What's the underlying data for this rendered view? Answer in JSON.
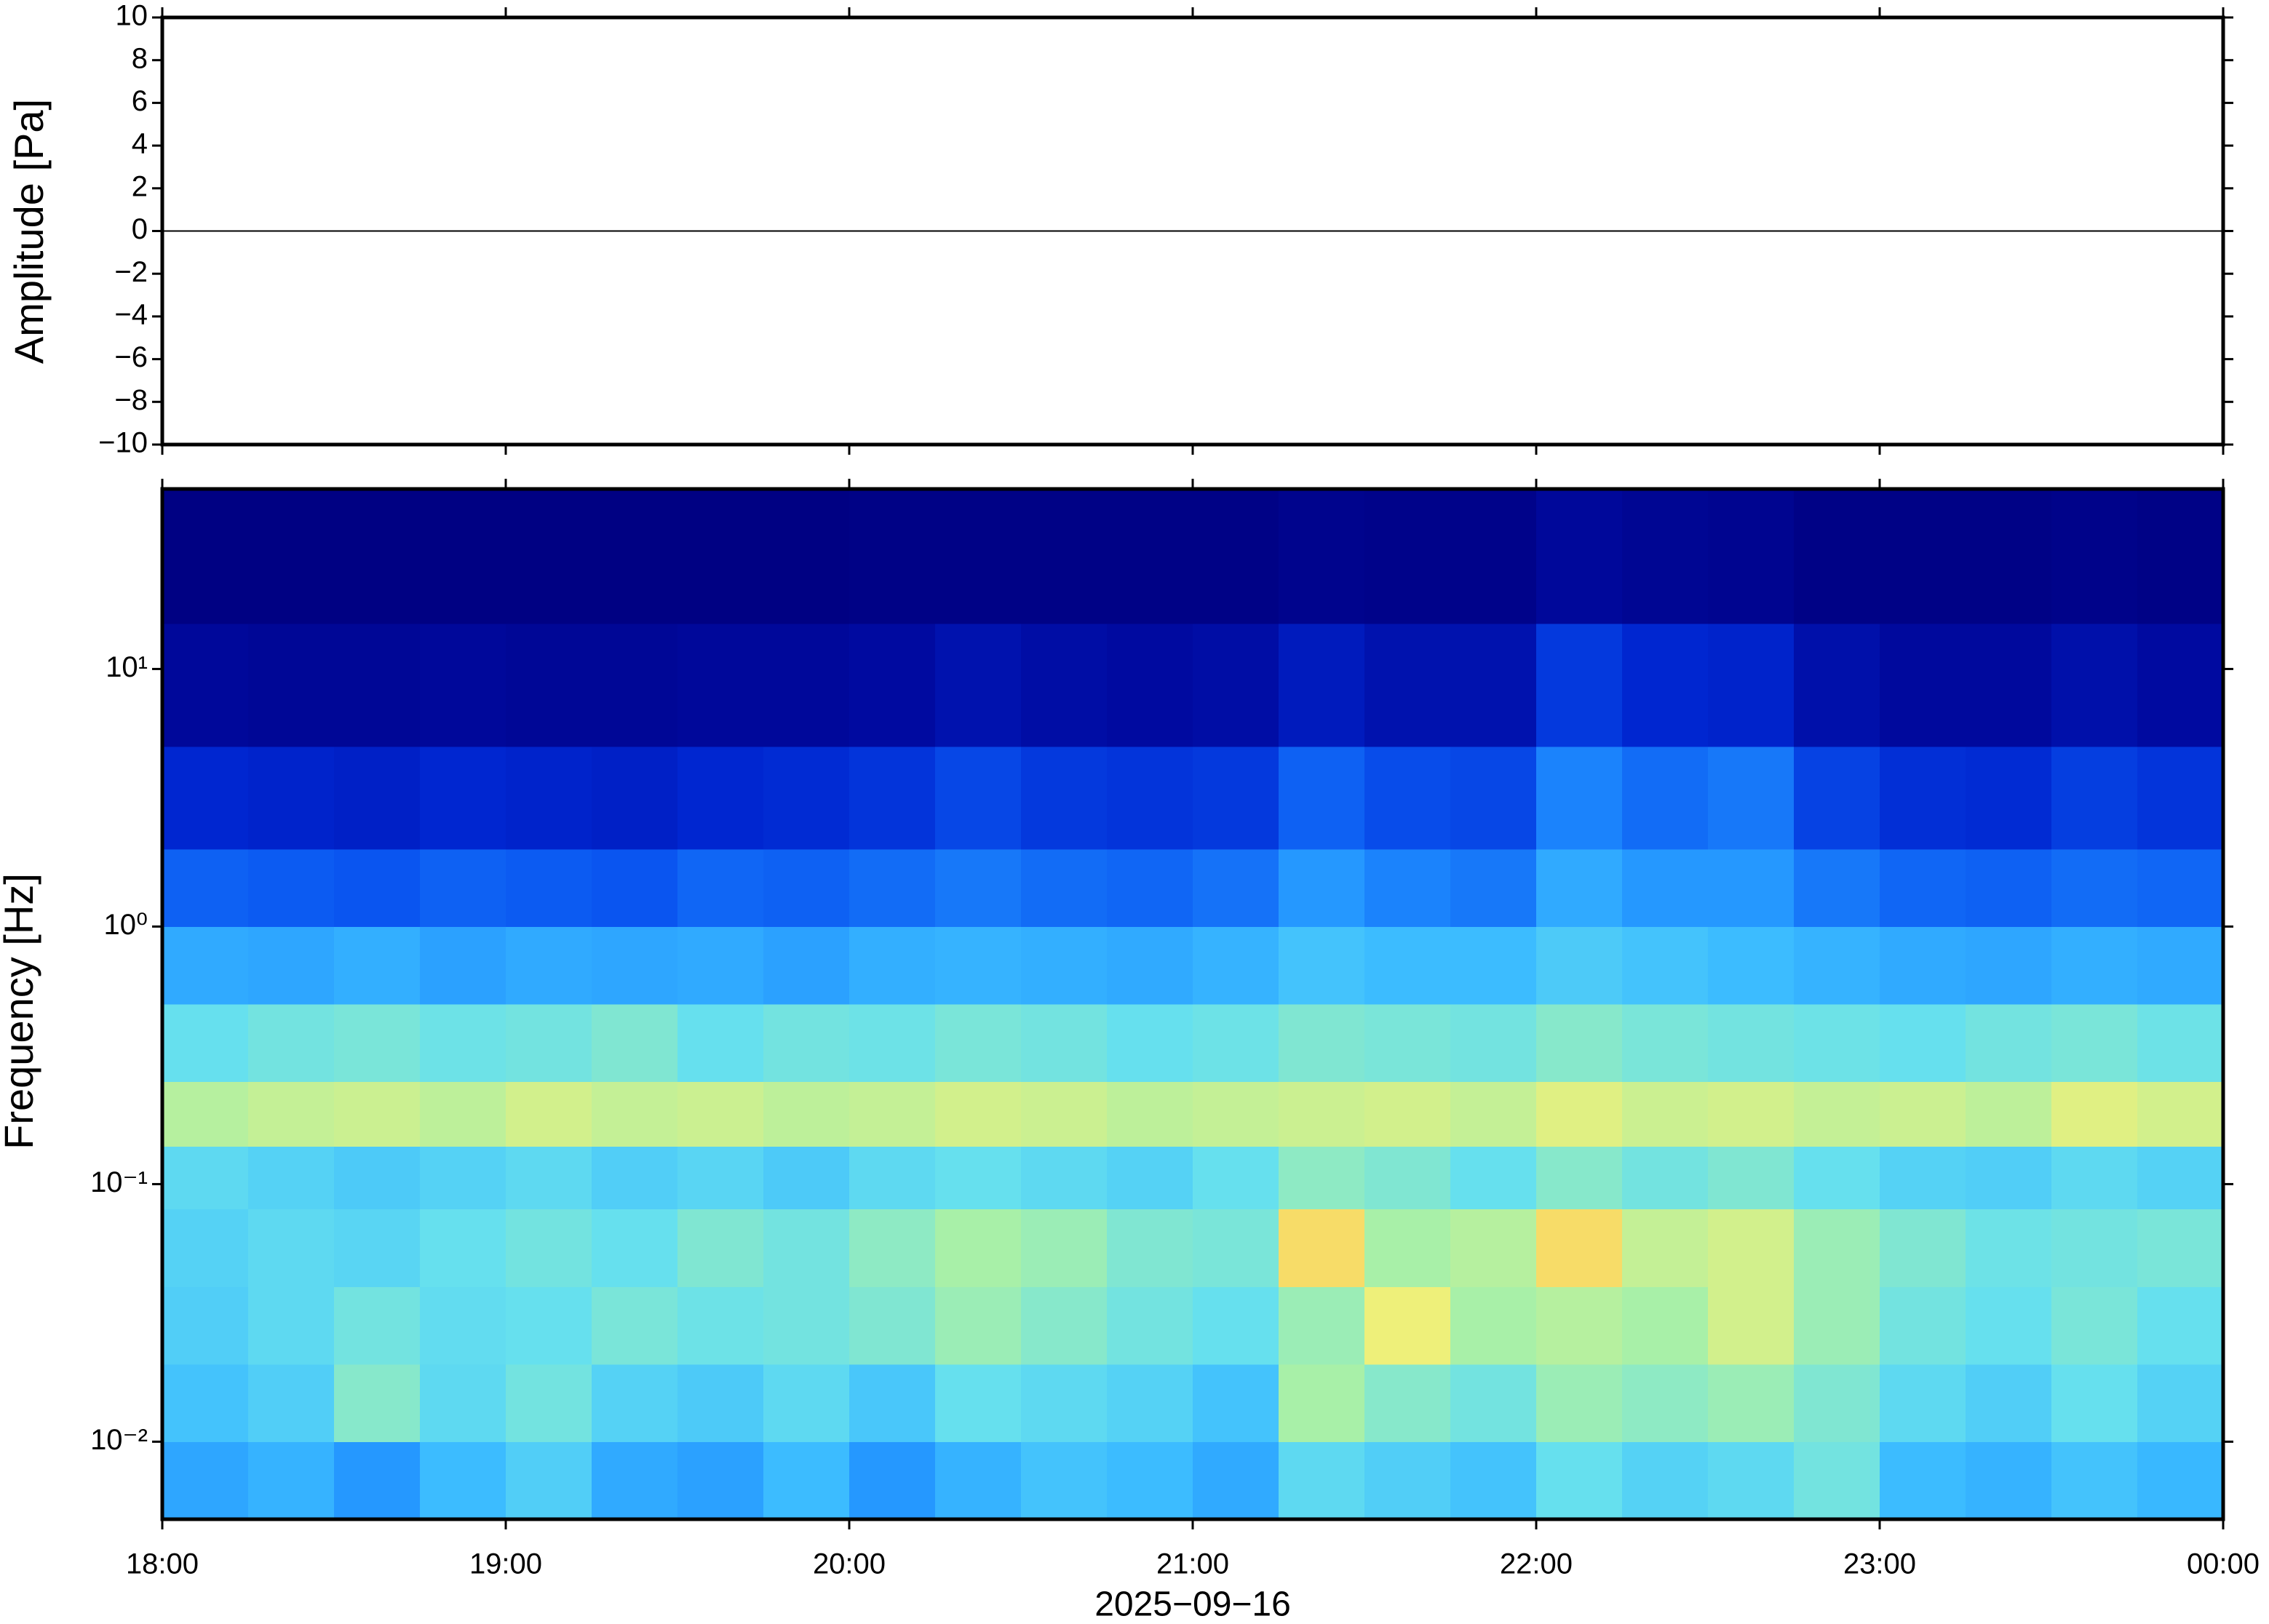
{
  "chart_data": [
    {
      "type": "line",
      "ylabel": "Amplitude [Pa]",
      "x": [
        18,
        24
      ],
      "values": [
        0,
        0
      ],
      "color": "#000000",
      "xlim": [
        18,
        24
      ],
      "ylim": [
        -10,
        10
      ],
      "yticks": [
        {
          "value": -10,
          "label": "−10"
        },
        {
          "value": -8,
          "label": "−8"
        },
        {
          "value": -6,
          "label": "−6"
        },
        {
          "value": -4,
          "label": "−4"
        },
        {
          "value": -2,
          "label": "−2"
        },
        0,
        2,
        4,
        6,
        8,
        10
      ]
    },
    {
      "type": "heatmap",
      "ylabel": "Frequency [Hz]",
      "xlabel": "2025−09−16",
      "xlim": [
        18,
        24
      ],
      "ylim": [
        0.005,
        50
      ],
      "log_y": true,
      "xticks": [
        {
          "value": 18,
          "label": "18:00"
        },
        {
          "value": 19,
          "label": "19:00"
        },
        {
          "value": 20,
          "label": "20:00"
        },
        {
          "value": 21,
          "label": "21:00"
        },
        {
          "value": 22,
          "label": "22:00"
        },
        {
          "value": 23,
          "label": "23:00"
        },
        {
          "value": 24,
          "label": "00:00"
        }
      ],
      "yticks": [
        {
          "value": 0.01,
          "label": "10⁻²"
        },
        {
          "value": 0.1,
          "label": "10⁻¹"
        },
        {
          "value": 1,
          "label": "10⁰"
        },
        {
          "value": 10,
          "label": "10¹"
        }
      ],
      "xbins": [
        18,
        18.25,
        18.5,
        18.75,
        19,
        19.25,
        19.5,
        19.75,
        20,
        20.25,
        20.5,
        20.75,
        21,
        21.25,
        21.5,
        21.75,
        22,
        22.25,
        22.5,
        22.75,
        23,
        23.25,
        23.5,
        23.75,
        24
      ],
      "ybins": [
        0.005,
        0.01,
        0.02,
        0.04,
        0.08,
        0.14,
        0.25,
        0.5,
        1,
        2,
        5,
        15,
        50
      ],
      "zlim": [
        0,
        10
      ],
      "colormap": [
        "#000080",
        "#000aa0",
        "#0026d0",
        "#0a55f0",
        "#1f8fff",
        "#3cbcff",
        "#66e0ee",
        "#a8f0a8",
        "#eef07a",
        "#ffc855",
        "#ff8a3a"
      ],
      "z": [
        [
          4.5,
          4.8,
          4.2,
          5,
          5.5,
          4.6,
          4.4,
          5,
          4.2,
          4.8,
          5.2,
          5,
          4.6,
          5.8,
          5.5,
          5.2,
          6,
          5.6,
          5.8,
          6.2,
          5,
          4.8,
          5.2,
          4.9
        ],
        [
          5.2,
          5.5,
          6.5,
          5.8,
          6.2,
          5.6,
          5.4,
          5.8,
          5.3,
          6,
          5.8,
          5.6,
          5.2,
          7,
          6.5,
          6.2,
          6.8,
          6.6,
          6.8,
          6.4,
          5.8,
          5.5,
          6,
          5.6
        ],
        [
          5.5,
          5.8,
          6.2,
          5.9,
          6,
          6.3,
          6.1,
          6.2,
          6.4,
          6.8,
          6.5,
          6.2,
          6,
          6.8,
          8,
          7,
          7.2,
          7,
          7.6,
          6.8,
          6.2,
          6,
          6.3,
          6
        ],
        [
          5.6,
          5.8,
          5.7,
          6,
          6.2,
          6,
          6.4,
          6.2,
          6.6,
          7,
          6.8,
          6.4,
          6.3,
          8.5,
          7,
          7.2,
          8.5,
          7.4,
          7.6,
          6.8,
          6.4,
          6.1,
          6.2,
          6.3
        ],
        [
          5.8,
          5.6,
          5.4,
          5.6,
          5.8,
          5.5,
          5.7,
          5.4,
          5.8,
          6,
          5.8,
          5.6,
          6,
          6.6,
          6.4,
          6,
          6.5,
          6.2,
          6.4,
          6,
          5.6,
          5.5,
          5.8,
          5.6
        ],
        [
          7.2,
          7.4,
          7.5,
          7.3,
          7.6,
          7.4,
          7.5,
          7.3,
          7.4,
          7.6,
          7.5,
          7.3,
          7.4,
          7.5,
          7.6,
          7.4,
          7.8,
          7.5,
          7.6,
          7.4,
          7.5,
          7.3,
          7.8,
          7.6
        ],
        [
          6,
          6.2,
          6.3,
          6.1,
          6.2,
          6.4,
          6,
          6.2,
          6.1,
          6.3,
          6.2,
          6,
          6.1,
          6.4,
          6.3,
          6.2,
          6.5,
          6.3,
          6.2,
          6.1,
          6,
          6.2,
          6.3,
          6.1
        ],
        [
          4.6,
          4.5,
          4.7,
          4.4,
          4.6,
          4.5,
          4.6,
          4.4,
          4.7,
          4.8,
          4.7,
          4.6,
          4.8,
          5.2,
          5,
          5,
          5.4,
          5.2,
          5,
          4.8,
          4.6,
          4.5,
          4.7,
          4.6
        ],
        [
          3.2,
          3.1,
          3,
          3.2,
          3.1,
          3,
          3.3,
          3.2,
          3.4,
          3.6,
          3.4,
          3.3,
          3.5,
          4.2,
          3.8,
          3.6,
          4.6,
          4.2,
          4.2,
          3.6,
          3.3,
          3.2,
          3.4,
          3.3
        ],
        [
          2,
          1.9,
          1.8,
          2,
          1.9,
          1.8,
          2,
          2.1,
          2.3,
          2.7,
          2.4,
          2.3,
          2.4,
          3.2,
          2.8,
          2.7,
          3.8,
          3.4,
          3.6,
          2.6,
          2.2,
          2.1,
          2.5,
          2.3
        ],
        [
          0.8,
          0.7,
          0.7,
          0.8,
          0.7,
          0.7,
          0.8,
          0.8,
          1,
          1.3,
          1.1,
          1,
          1.1,
          1.6,
          1.3,
          1.3,
          2.4,
          2,
          1.9,
          1.2,
          0.9,
          0.9,
          1.2,
          1
        ],
        [
          0.1,
          0.1,
          0.1,
          0.1,
          0.1,
          0.1,
          0.1,
          0.1,
          0.2,
          0.2,
          0.2,
          0.2,
          0.2,
          0.4,
          0.3,
          0.3,
          0.8,
          0.6,
          0.5,
          0.2,
          0.2,
          0.2,
          0.3,
          0.2
        ]
      ]
    }
  ]
}
